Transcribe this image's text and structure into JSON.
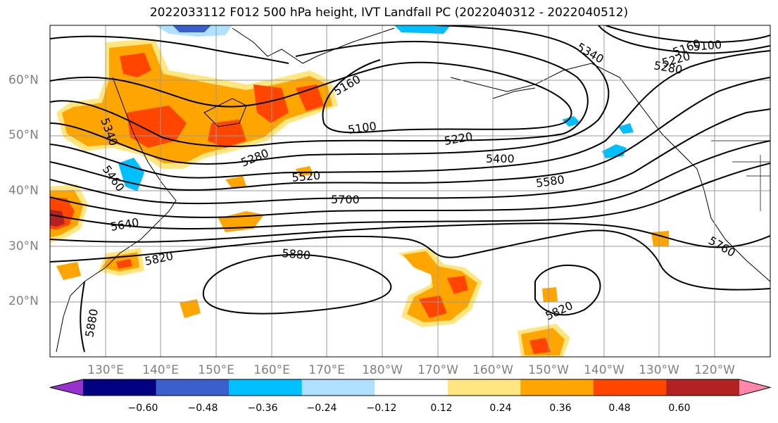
{
  "title": "2022033112 F012 500 hPa height, IVT Landfall PC (2022040312 - 2022040512)",
  "map": {
    "lat_labels": [
      "60°N",
      "50°N",
      "40°N",
      "30°N",
      "20°N"
    ],
    "lon_labels": [
      "130°E",
      "140°E",
      "150°E",
      "160°E",
      "170°E",
      "180°W",
      "170°W",
      "160°W",
      "150°W",
      "140°W",
      "130°W",
      "120°W"
    ],
    "height_contour_labels": [
      "5160",
      "5100",
      "5220",
      "5280",
      "5340",
      "5520",
      "5400",
      "5580",
      "5700",
      "5460",
      "5640",
      "5820",
      "5880",
      "5160",
      "5100",
      "5220",
      "5280",
      "5340",
      "5760",
      "5820",
      "5880"
    ],
    "fill_colors": {
      "strong_positive": "#b22222",
      "positive_high": "#ff4500",
      "positive_mid": "#ffa500",
      "positive_low": "#ffe680",
      "negative_low": "#b0e0ff",
      "negative_mid": "#00bfff",
      "negative_high": "#3a5fcd"
    }
  },
  "colorbar": {
    "tick_labels": [
      "−0.60",
      "−0.48",
      "−0.36",
      "−0.24",
      "−0.12",
      "0.12",
      "0.24",
      "0.36",
      "0.48",
      "0.60"
    ],
    "colors": [
      "#9932cc",
      "#000080",
      "#3a5fcd",
      "#00bfff",
      "#b0e0ff",
      "#ffffff",
      "#ffe680",
      "#ffa500",
      "#ff4500",
      "#b22222",
      "#ff88aa"
    ]
  }
}
